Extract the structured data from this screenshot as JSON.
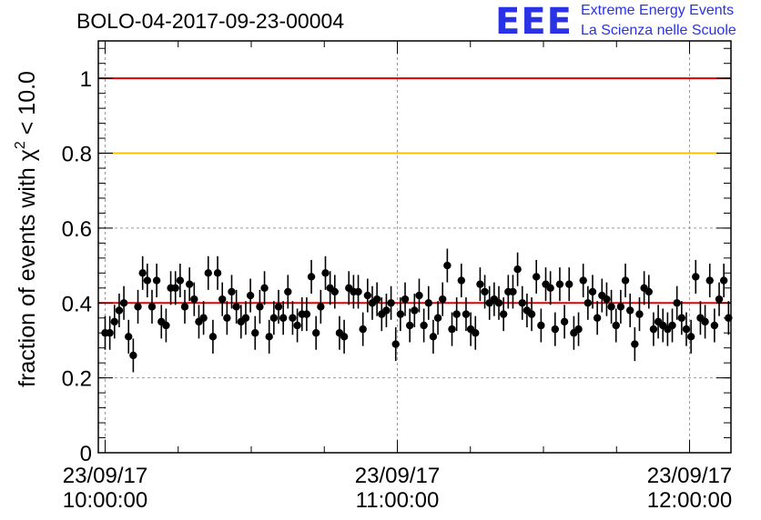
{
  "title": "BOLO-04-2017-09-23-00004",
  "logo": {
    "mark": "EEE",
    "line1": "Extreme Energy Events",
    "line2": "La Scienza nelle Scuole",
    "color": "#2a32e6"
  },
  "colors": {
    "ref_red": "#e00000",
    "ref_orange": "#ffc000",
    "marker": "#000000",
    "grid": "#9a9a9a"
  },
  "chart_data": {
    "type": "scatter",
    "title": "BOLO-04-2017-09-23-00004",
    "ylabel": "fraction of events with χ² < 10.0",
    "ylabel_base": "fraction of events with χ",
    "ylabel_sup": "2",
    "ylabel_tail": " < 10.0",
    "xlabel": "",
    "x_unit": "minutes after 23/09/17 10:00:00",
    "xlim": [
      -1.4,
      128.5
    ],
    "ylim": [
      0,
      1.1
    ],
    "grid": true,
    "yticks": [
      {
        "value": 0,
        "label": "0"
      },
      {
        "value": 0.2,
        "label": "0.2"
      },
      {
        "value": 0.4,
        "label": "0.4"
      },
      {
        "value": 0.6,
        "label": "0.6"
      },
      {
        "value": 0.8,
        "label": "0.8"
      },
      {
        "value": 1,
        "label": "1"
      }
    ],
    "xticks": [
      {
        "value": 0,
        "date": "23/09/17",
        "time": "10:00:00"
      },
      {
        "value": 60,
        "date": "23/09/17",
        "time": "11:00:00"
      },
      {
        "value": 120,
        "date": "23/09/17",
        "time": "12:00:00"
      }
    ],
    "x_minor_step": 15,
    "reference_lines": [
      {
        "y": 1.0,
        "color": "#e00000"
      },
      {
        "y": 0.8,
        "color": "#ffc000"
      },
      {
        "y": 0.4,
        "color": "#e00000"
      }
    ],
    "error": 0.045,
    "y": [
      0.32,
      0.32,
      0.35,
      0.38,
      0.4,
      0.31,
      0.26,
      0.39,
      0.48,
      0.46,
      0.39,
      0.46,
      0.35,
      0.34,
      0.44,
      0.44,
      0.46,
      0.39,
      0.45,
      0.41,
      0.35,
      0.36,
      0.48,
      0.31,
      0.48,
      0.41,
      0.36,
      0.43,
      0.39,
      0.35,
      0.36,
      0.42,
      0.32,
      0.39,
      0.44,
      0.31,
      0.36,
      0.39,
      0.36,
      0.43,
      0.36,
      0.34,
      0.37,
      0.37,
      0.47,
      0.32,
      0.39,
      0.48,
      0.44,
      0.43,
      0.32,
      0.31,
      0.44,
      0.43,
      0.43,
      0.33,
      0.42,
      0.4,
      0.41,
      0.37,
      0.38,
      0.4,
      0.29,
      0.37,
      0.41,
      0.34,
      0.38,
      0.42,
      0.34,
      0.4,
      0.31,
      0.36,
      0.41,
      0.5,
      0.33,
      0.37,
      0.46,
      0.37,
      0.33,
      0.32,
      0.45,
      0.43,
      0.4,
      0.41,
      0.4,
      0.37,
      0.43,
      0.43,
      0.49,
      0.4,
      0.38,
      0.37,
      0.47,
      0.34,
      0.45,
      0.44,
      0.33,
      0.45,
      0.35,
      0.45,
      0.32,
      0.33,
      0.46,
      0.4,
      0.43,
      0.36,
      0.42,
      0.41,
      0.39,
      0.34,
      0.39,
      0.46,
      0.38,
      0.29,
      0.37,
      0.44,
      0.43,
      0.33,
      0.35,
      0.34,
      0.33,
      0.34,
      0.4,
      0.36,
      0.33,
      0.31,
      0.47,
      0.36,
      0.35,
      0.46,
      0.34,
      0.41,
      0.46,
      0.36
    ]
  }
}
